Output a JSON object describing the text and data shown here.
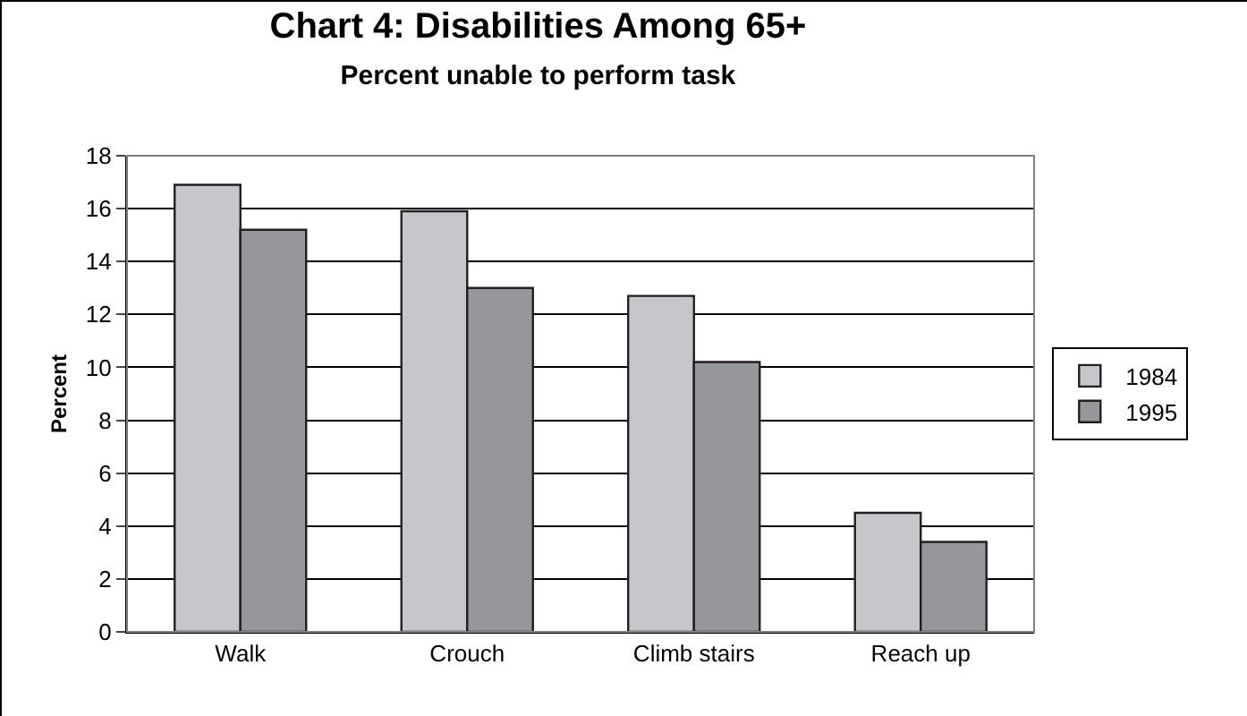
{
  "chart_data": {
    "type": "bar",
    "title": "Chart 4: Disabilities Among 65+",
    "subtitle": "Percent unable to perform task",
    "ylabel": "Percent",
    "categories": [
      "Walk",
      "Crouch",
      "Climb stairs",
      "Reach up"
    ],
    "series": [
      {
        "name": "1984",
        "color": "#c6c7cb",
        "values": [
          16.9,
          15.9,
          12.7,
          4.5
        ]
      },
      {
        "name": "1995",
        "color": "#96979b",
        "values": [
          15.2,
          13.0,
          10.2,
          3.4
        ]
      }
    ],
    "ylim": [
      0,
      18
    ],
    "yticks": [
      0,
      2,
      4,
      6,
      8,
      10,
      12,
      14,
      16,
      18
    ],
    "grid": "y",
    "legend": "right"
  }
}
